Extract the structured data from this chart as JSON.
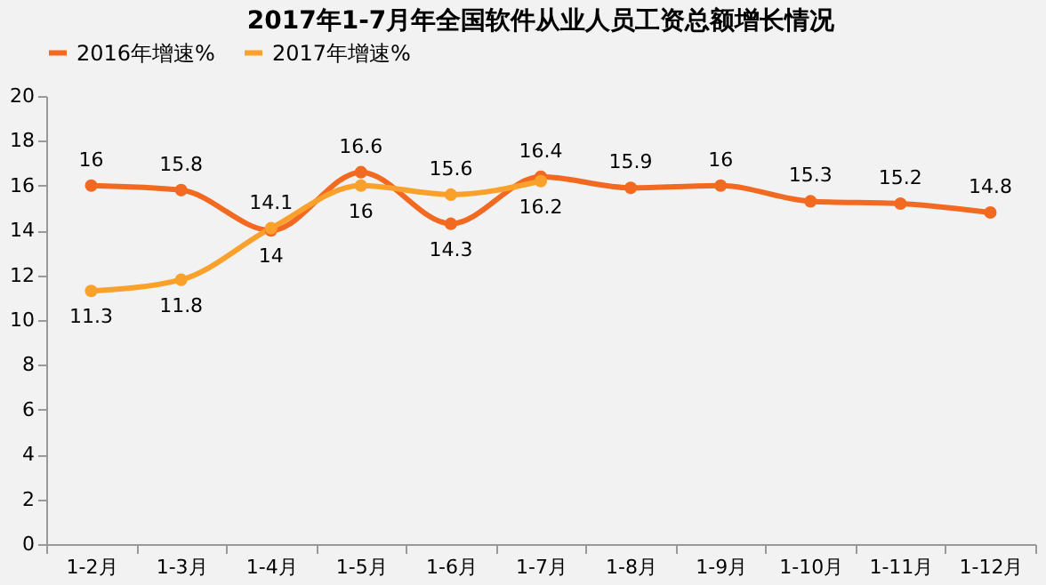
{
  "chart_data": {
    "type": "line",
    "title": "2017年1-7月年全国软件从业人员工资总额增长情况",
    "categories": [
      "1-2月",
      "1-3月",
      "1-4月",
      "1-5月",
      "1-6月",
      "1-7月",
      "1-8月",
      "1-9月",
      "1-10月",
      "1-11月",
      "1-12月"
    ],
    "series": [
      {
        "name": "2016年增速%",
        "color": "#f26a21",
        "values": [
          16,
          15.8,
          14,
          16.6,
          14.3,
          16.4,
          15.9,
          16,
          15.3,
          15.2,
          14.8
        ]
      },
      {
        "name": "2017年增速%",
        "color": "#f9a12b",
        "values": [
          11.3,
          11.8,
          14.1,
          16,
          15.6,
          16.2,
          null,
          null,
          null,
          null,
          null
        ]
      }
    ],
    "ylim": [
      0,
      20
    ],
    "yticks": [
      0,
      2,
      4,
      6,
      8,
      10,
      12,
      14,
      16,
      18,
      20
    ],
    "grid": false,
    "legend": "top",
    "marker": "circle",
    "line_style": "solid",
    "data_labels": true
  }
}
